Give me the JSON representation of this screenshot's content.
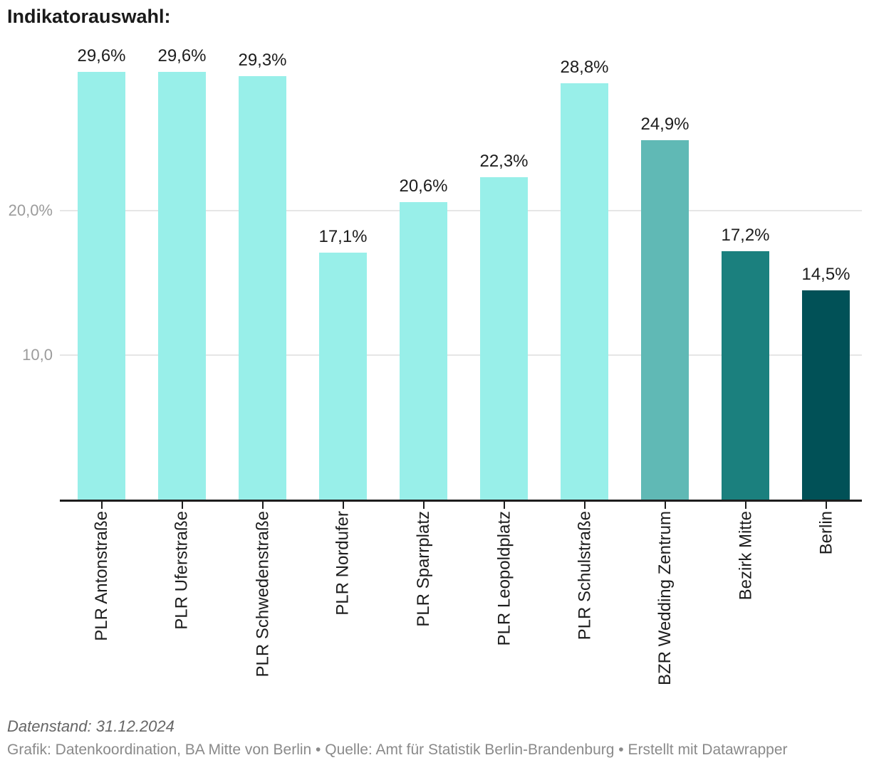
{
  "title": "Indikatorauswahl:",
  "chart_data": {
    "type": "bar",
    "categories": [
      "PLR Antonstraße",
      "PLR Uferstraße",
      "PLR Schwedenstraße",
      "PLR Nordufer",
      "PLR Sparrplatz",
      "PLR Leopoldplatz",
      "PLR Schulstraße",
      "BZR Wedding Zentrum",
      "Bezirk Mitte",
      "Berlin"
    ],
    "values": [
      29.6,
      29.6,
      29.3,
      17.1,
      20.6,
      22.3,
      28.8,
      24.9,
      17.2,
      14.5
    ],
    "value_labels": [
      "29,6%",
      "29,6%",
      "29,3%",
      "17,1%",
      "20,6%",
      "22,3%",
      "28,8%",
      "24,9%",
      "17,2%",
      "14,5%"
    ],
    "bar_colors": [
      "#98efe9",
      "#98efe9",
      "#98efe9",
      "#98efe9",
      "#98efe9",
      "#98efe9",
      "#98efe9",
      "#60b9b5",
      "#1b807e",
      "#015157"
    ],
    "title": "Indikatorauswahl:",
    "xlabel": "",
    "ylabel": "",
    "ylim": [
      0,
      31.6
    ],
    "grid": true,
    "legend": "none",
    "y_axis_ticks": [
      {
        "value": 10,
        "label": "10,0"
      },
      {
        "value": 20,
        "label": "20,0%"
      }
    ],
    "colors": {
      "bar_light": "#98efe9",
      "bar_medium": "#60b9b5",
      "bar_dark": "#1b807e",
      "bar_darkest": "#015157",
      "gridline": "#e6e6e6",
      "axis_line": "#1d1d1d",
      "value_label_text": "#1d1d1d",
      "y_tick_text": "#9b9b9b"
    }
  },
  "footer": {
    "note": "Datenstand: 31.12.2024",
    "byline": "Grafik: Datenkoordination, BA Mitte von Berlin • Quelle: Amt für Statistik Berlin-Brandenburg • Erstellt mit Datawrapper"
  }
}
